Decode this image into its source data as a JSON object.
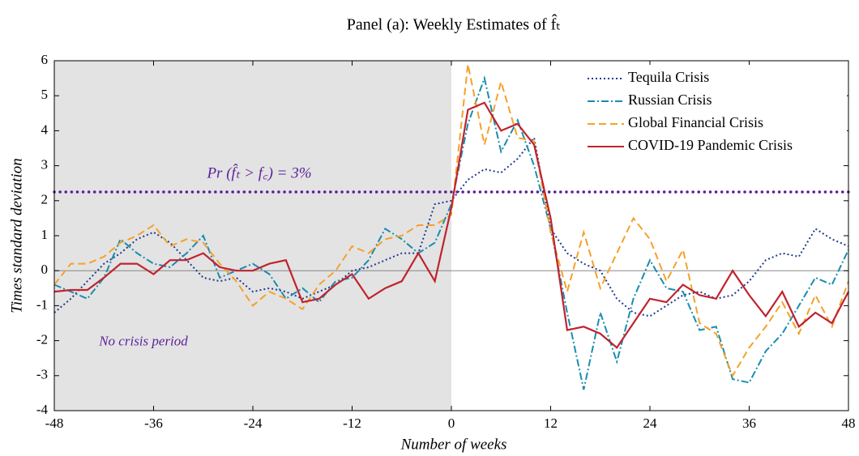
{
  "chart_data": {
    "type": "line",
    "title": "Panel (a): Weekly Estimates of f̂ₜ",
    "xlabel": "Number of weeks",
    "ylabel": "Times standard deviation",
    "x": [
      -48,
      -46,
      -44,
      -42,
      -40,
      -38,
      -36,
      -34,
      -32,
      -30,
      -28,
      -26,
      -24,
      -22,
      -20,
      -18,
      -16,
      -14,
      -12,
      -10,
      -8,
      -6,
      -4,
      -2,
      0,
      2,
      4,
      6,
      8,
      10,
      12,
      14,
      16,
      18,
      20,
      22,
      24,
      26,
      28,
      30,
      32,
      34,
      36,
      38,
      40,
      42,
      44,
      46,
      48
    ],
    "series": [
      {
        "name": "Tequila Crisis",
        "color": "#1f3a8a",
        "dash": "2,3",
        "values": [
          -1.2,
          -0.8,
          -0.3,
          0.2,
          0.5,
          0.9,
          1.1,
          0.8,
          0.3,
          -0.2,
          -0.3,
          -0.2,
          -0.6,
          -0.5,
          -0.6,
          -0.8,
          -0.6,
          -0.4,
          0.0,
          0.1,
          0.3,
          0.5,
          0.5,
          1.9,
          2.0,
          2.6,
          2.9,
          2.8,
          3.2,
          3.8,
          1.2,
          0.5,
          0.2,
          0.0,
          -0.8,
          -1.2,
          -1.3,
          -1.0,
          -0.7,
          -0.6,
          -0.8,
          -0.7,
          -0.3,
          0.3,
          0.5,
          0.4,
          1.2,
          0.9,
          0.7
        ]
      },
      {
        "name": "Russian Crisis",
        "color": "#1a8cb0",
        "dash": "9,3,2,3",
        "values": [
          -0.4,
          -0.6,
          -0.8,
          -0.2,
          0.9,
          0.5,
          0.2,
          0.1,
          0.5,
          1.0,
          -0.2,
          0.0,
          0.2,
          -0.1,
          -0.8,
          -0.5,
          -0.9,
          -0.3,
          -0.2,
          0.3,
          1.2,
          0.9,
          0.5,
          0.8,
          1.9,
          4.2,
          5.5,
          3.4,
          4.3,
          3.0,
          1.2,
          -1.2,
          -3.4,
          -1.2,
          -2.6,
          -0.8,
          0.3,
          -0.5,
          -0.6,
          -1.7,
          -1.6,
          -3.1,
          -3.2,
          -2.3,
          -1.8,
          -1.0,
          -0.2,
          -0.4,
          0.6
        ]
      },
      {
        "name": "Global Financial Crisis",
        "color": "#f5a12a",
        "dash": "9,5",
        "values": [
          -0.4,
          0.2,
          0.2,
          0.4,
          0.8,
          1.0,
          1.3,
          0.7,
          0.9,
          0.8,
          0.2,
          -0.3,
          -1.0,
          -0.6,
          -0.8,
          -1.1,
          -0.4,
          0.0,
          0.7,
          0.5,
          0.9,
          1.0,
          1.3,
          1.3,
          1.6,
          5.9,
          3.6,
          5.4,
          3.8,
          3.7,
          1.1,
          -0.6,
          1.1,
          -0.5,
          0.5,
          1.5,
          0.9,
          -0.3,
          0.6,
          -1.5,
          -1.8,
          -3.0,
          -2.2,
          -1.6,
          -0.9,
          -1.8,
          -0.7,
          -1.6,
          -0.3
        ]
      },
      {
        "name": "COVID-19 Pandemic Crisis",
        "color": "#c0232d",
        "dash": "none",
        "values": [
          -0.6,
          -0.55,
          -0.55,
          -0.2,
          0.2,
          0.2,
          -0.1,
          0.3,
          0.3,
          0.5,
          0.1,
          0.0,
          0.0,
          0.2,
          0.3,
          -0.9,
          -0.8,
          -0.4,
          -0.1,
          -0.8,
          -0.5,
          -0.3,
          0.5,
          -0.3,
          1.8,
          4.6,
          4.8,
          4.0,
          4.2,
          3.6,
          1.5,
          -1.7,
          -1.6,
          -1.8,
          -2.2,
          -1.5,
          -0.8,
          -0.9,
          -0.4,
          -0.7,
          -0.8,
          0.0,
          -0.7,
          -1.3,
          -0.6,
          -1.6,
          -1.2,
          -1.5,
          -0.6
        ]
      }
    ],
    "threshold": {
      "value": 2.25,
      "label": "Pr (f̂ₜ > f꜀) = 3%",
      "color": "#5b1f9a"
    },
    "shaded_region": {
      "x": [
        -48,
        0
      ],
      "label": "No crisis period",
      "color": "#e3e3e3"
    },
    "xlim": [
      -48,
      48
    ],
    "xticks": [
      -48,
      -36,
      -24,
      -12,
      0,
      12,
      24,
      36,
      48
    ],
    "ylim": [
      -4,
      6
    ],
    "yticks": [
      -4,
      -3,
      -2,
      -1,
      0,
      1,
      2,
      3,
      4,
      5,
      6
    ],
    "legend": "upper right"
  }
}
